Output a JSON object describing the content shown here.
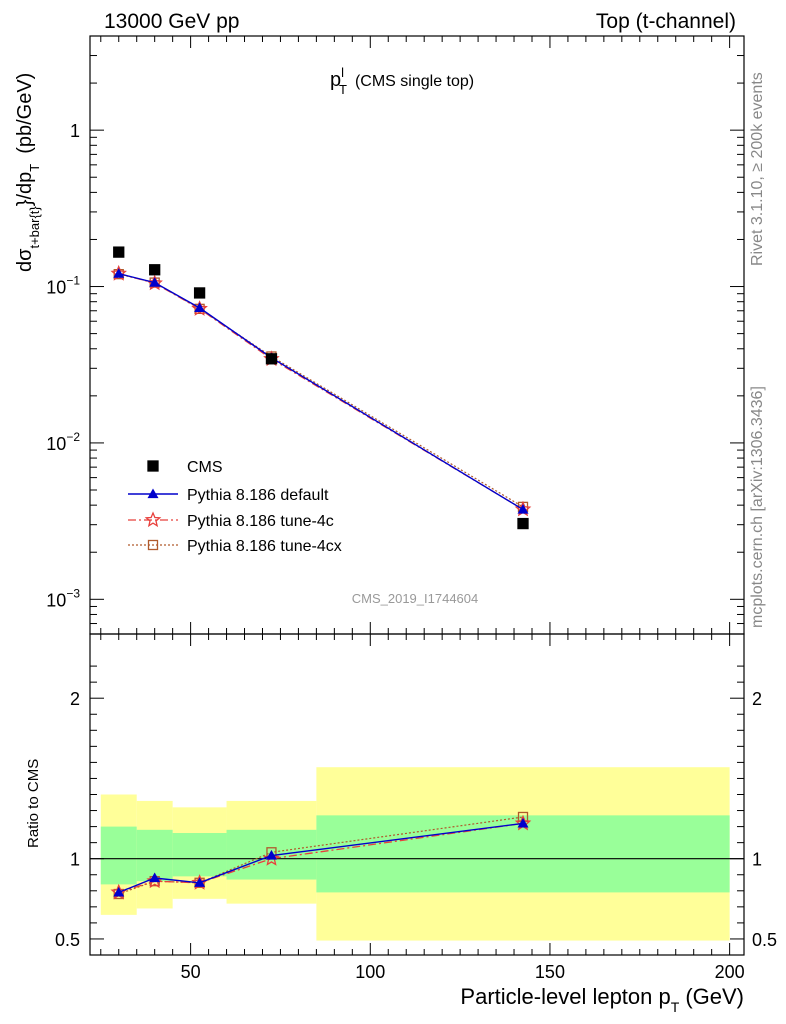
{
  "header": {
    "left": "13000 GeV pp",
    "right": "Top (t-channel)"
  },
  "side_labels": {
    "rivet": "Rivet 3.1.10, ≥ 200k events",
    "mcplots": "mcplots.cern.ch [arXiv:1306.3436]"
  },
  "main_title": {
    "p": "p",
    "sup": "l",
    "sub": "T",
    "rest": "(CMS single top)"
  },
  "analysis_tag": "CMS_2019_I1744604",
  "y_axis_main": {
    "d": "dσ",
    "sub": "t+bar{t}",
    "mid": "}/dp",
    "sub2": "T",
    "unit": "(pb/GeV)"
  },
  "y_axis_ratio": "Ratio to CMS",
  "x_axis": {
    "main": "Particle-level lepton p",
    "sub": "T",
    "unit": "(GeV)"
  },
  "colors": {
    "data": "#000000",
    "default": "#0000cc",
    "tune4c": "#e8403c",
    "tune4cx": "#b05a2c",
    "band_inner": "#99ff99",
    "band_outer": "#ffff99"
  },
  "chart_data": {
    "type": "line",
    "x_range": [
      22,
      204
    ],
    "main_y_range": [
      0.0006,
      4.0
    ],
    "main_y_scale": "log",
    "ratio_y_range": [
      0.4,
      2.4
    ],
    "x_ticks": [
      50,
      100,
      150,
      200
    ],
    "main_y_tick_labels": [
      "1",
      "10^-1",
      "10^-2",
      "10^-3"
    ],
    "ratio_y_ticks": [
      0.5,
      1,
      2
    ],
    "bins": [
      [
        25,
        35
      ],
      [
        35,
        45
      ],
      [
        45,
        60
      ],
      [
        60,
        85
      ],
      [
        85,
        200
      ]
    ],
    "band_inner": [
      [
        0.84,
        1.2
      ],
      [
        0.86,
        1.18
      ],
      [
        0.89,
        1.16
      ],
      [
        0.87,
        1.18
      ],
      [
        0.79,
        1.27
      ]
    ],
    "band_outer": [
      [
        0.65,
        1.4
      ],
      [
        0.69,
        1.36
      ],
      [
        0.75,
        1.32
      ],
      [
        0.72,
        1.36
      ],
      [
        0.49,
        1.57
      ]
    ],
    "legend_position": "lower-left",
    "series": [
      {
        "name": "CMS",
        "key": "cms",
        "x": [
          30,
          40,
          52.5,
          72.5,
          142.5
        ],
        "y": [
          0.166,
          0.128,
          0.091,
          0.0345,
          0.00305
        ],
        "ratio": [
          1,
          1,
          1,
          1,
          1
        ]
      },
      {
        "name": "Pythia 8.186 default",
        "key": "default",
        "x": [
          30,
          40,
          52.5,
          72.5,
          142.5
        ],
        "y": [
          0.121,
          0.106,
          0.073,
          0.035,
          0.00375
        ],
        "ratio": [
          0.79,
          0.88,
          0.85,
          1.02,
          1.22
        ]
      },
      {
        "name": "Pythia 8.186 tune-4c",
        "key": "tune4c",
        "x": [
          30,
          40,
          52.5,
          72.5,
          142.5
        ],
        "y": [
          0.121,
          0.105,
          0.072,
          0.0344,
          0.00376
        ],
        "ratio": [
          0.79,
          0.86,
          0.85,
          1.0,
          1.22
        ]
      },
      {
        "name": "Pythia 8.186 tune-4cx",
        "key": "tune4cx",
        "x": [
          30,
          40,
          52.5,
          72.5,
          142.5
        ],
        "y": [
          0.12,
          0.106,
          0.072,
          0.0357,
          0.0039
        ],
        "ratio": [
          0.78,
          0.86,
          0.85,
          1.04,
          1.26
        ]
      }
    ]
  }
}
